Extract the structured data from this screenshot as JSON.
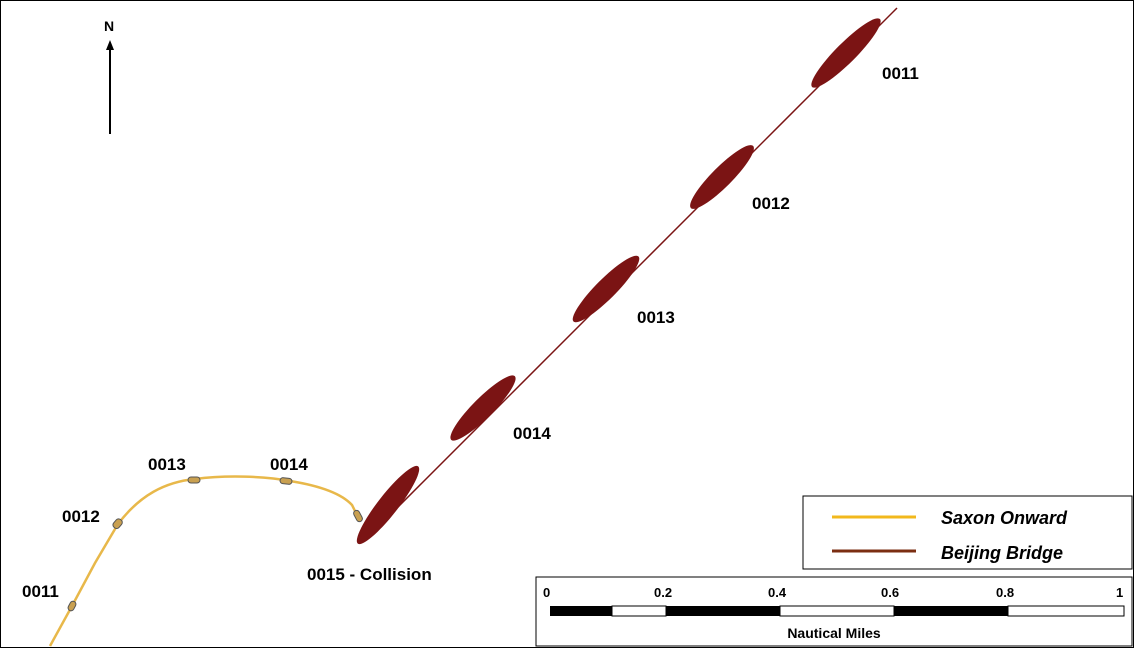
{
  "map": {
    "north_label": "N",
    "colors": {
      "saxon_onward": "#E8B84A",
      "beijing_bridge": "#7B1414",
      "background": "#ffffff"
    },
    "saxon_labels": [
      "0011",
      "0012",
      "0013",
      "0014"
    ],
    "beijing_labels": [
      "0011",
      "0012",
      "0013",
      "0014"
    ],
    "collision_label": "0015 - Collision"
  },
  "legend": {
    "items": [
      {
        "label": "Saxon Onward",
        "color": "#F2B81C"
      },
      {
        "label": "Beijing Bridge",
        "color": "#7B2E12"
      }
    ]
  },
  "scale_bar": {
    "ticks": [
      "0",
      "0.2",
      "0.4",
      "0.6",
      "0.8",
      "1"
    ],
    "unit": "Nautical Miles"
  }
}
